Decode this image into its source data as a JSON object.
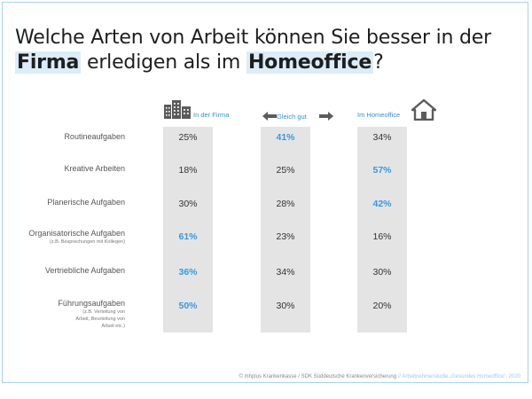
{
  "title": {
    "part1": "Welche Arten von Arbeit können Sie besser in der ",
    "hl1": "Firma",
    "part2": " erledigen als im ",
    "hl2": "Homeoffice",
    "part3": "?"
  },
  "colors": {
    "accent": "#3a98dd",
    "column": "#e4e4e4",
    "frame": "#a9d2ec",
    "highlight": "#dcecf8"
  },
  "chart_data": {
    "type": "table",
    "columns": [
      {
        "label": "In der Firma",
        "icon": "building-icon"
      },
      {
        "label": "Gleich gut",
        "icon": "double-arrow-icon"
      },
      {
        "label": "Im Homeoffice",
        "icon": "house-icon"
      }
    ],
    "rows": [
      {
        "label": "Routineaufgaben",
        "sublabel": "",
        "values": [
          "25%",
          "41%",
          "34%"
        ],
        "highlight": 1
      },
      {
        "label": "Kreative Arbeiten",
        "sublabel": "",
        "values": [
          "18%",
          "25%",
          "57%"
        ],
        "highlight": 2
      },
      {
        "label": "Planerische Aufgaben",
        "sublabel": "",
        "values": [
          "30%",
          "28%",
          "42%"
        ],
        "highlight": 2
      },
      {
        "label": "Organisatorische Aufgaben",
        "sublabel": "(z.B. Besprechungen mit Kollegen)",
        "values": [
          "61%",
          "23%",
          "16%"
        ],
        "highlight": 0
      },
      {
        "label": "Vertriebliche Aufgaben",
        "sublabel": "",
        "values": [
          "36%",
          "34%",
          "30%"
        ],
        "highlight": 0
      },
      {
        "label": "Führungsaufgaben",
        "sublabel": "(z.B. Verteilung von Arbeit, Beurteilung von Arbeit etc.)",
        "values": [
          "50%",
          "30%",
          "20%"
        ],
        "highlight": 0
      }
    ]
  },
  "footer": {
    "source": "© mhplus Krankenkasse / SDK Süddeutsche Krankenversicherung",
    "study": " // Arbeitnehmerstudie „Gesundes Homeoffice“, 2020"
  }
}
